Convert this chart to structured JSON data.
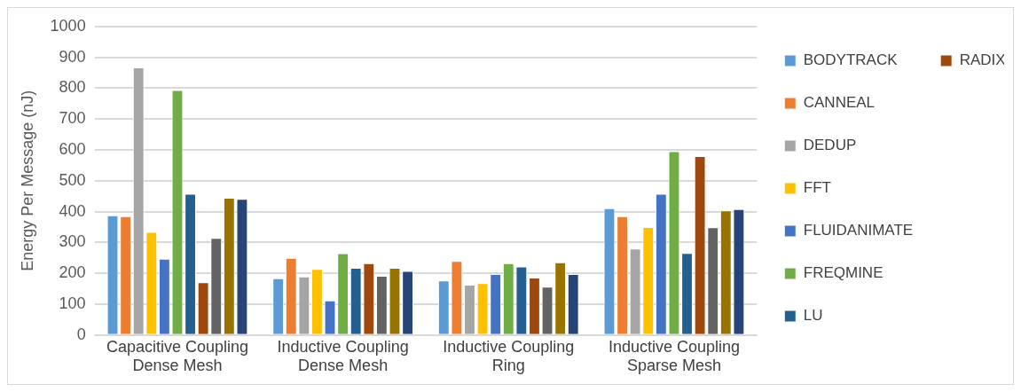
{
  "chart_data": {
    "type": "bar",
    "ylabel": "Energy Per Message (nJ)",
    "categories": [
      "Capacitive Coupling Dense Mesh",
      "Inductive Coupling Dense Mesh",
      "Inductive Coupling Ring",
      "Inductive Coupling Sparse Mesh"
    ],
    "series": [
      {
        "name": "BODYTRACK",
        "color": "#5b9bd5",
        "values": [
          388,
          184,
          177,
          411
        ]
      },
      {
        "name": "CANNEAL",
        "color": "#ed7d31",
        "values": [
          385,
          250,
          240,
          385
        ]
      },
      {
        "name": "DEDUP",
        "color": "#a5a5a5",
        "values": [
          867,
          190,
          163,
          280
        ]
      },
      {
        "name": "FFT",
        "color": "#ffc000",
        "values": [
          334,
          214,
          168,
          350
        ]
      },
      {
        "name": "FLUIDANIMATE",
        "color": "#4472c4",
        "values": [
          247,
          112,
          198,
          458
        ]
      },
      {
        "name": "FREQMINE",
        "color": "#70ad47",
        "values": [
          794,
          265,
          233,
          596
        ]
      },
      {
        "name": "LU",
        "color": "#255e91",
        "values": [
          458,
          218,
          222,
          266
        ]
      },
      {
        "name": "RADIX",
        "color": "#9e480e",
        "values": [
          171,
          233,
          186,
          580
        ]
      },
      {
        "color": "#636363",
        "values": [
          315,
          192,
          157,
          349
        ]
      },
      {
        "color": "#997300",
        "values": [
          445,
          218,
          236,
          404
        ]
      },
      {
        "color": "#264478",
        "values": [
          441,
          208,
          198,
          408
        ]
      }
    ],
    "ylim": [
      0,
      1000
    ],
    "yticks": [
      0,
      100,
      200,
      300,
      400,
      500,
      600,
      700,
      800,
      900,
      1000
    ],
    "grid": "y",
    "legend": "right"
  }
}
